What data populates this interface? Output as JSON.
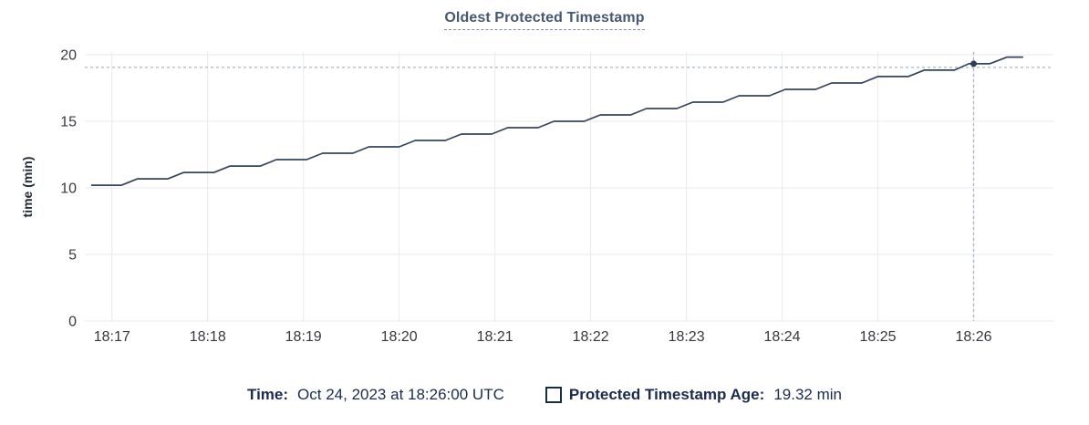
{
  "colors": {
    "title": "#475872",
    "title_underline": "#7d8cab",
    "line": "#34455e",
    "dot": "#2c3d57",
    "grid": "#e9eaec",
    "axis_text": "#36393f",
    "ylabel_text": "#242a35",
    "crosshair": "#a5b5c5",
    "legend_text": "#1b2b4d"
  },
  "chart_data": {
    "type": "line",
    "title": "Oldest Protected Timestamp",
    "xlabel": "",
    "ylabel": "time (min)",
    "ylim": [
      0,
      20
    ],
    "yticks": [
      0,
      5,
      10,
      15,
      20
    ],
    "x_domain_s": [
      3,
      610
    ],
    "xticks": [
      [
        20,
        "18:17"
      ],
      [
        80,
        "18:18"
      ],
      [
        140,
        "18:19"
      ],
      [
        200,
        "18:20"
      ],
      [
        260,
        "18:21"
      ],
      [
        320,
        "18:22"
      ],
      [
        380,
        "18:23"
      ],
      [
        440,
        "18:24"
      ],
      [
        500,
        "18:25"
      ],
      [
        560,
        "18:26"
      ]
    ],
    "grid": true,
    "legend_position": "bottom",
    "series": [
      {
        "name": "Protected Timestamp Age",
        "points": [
          [
            7,
            10.2
          ],
          [
            26,
            10.2
          ],
          [
            36,
            10.68
          ],
          [
            55,
            10.68
          ],
          [
            65,
            11.16
          ],
          [
            84,
            11.16
          ],
          [
            94,
            11.64
          ],
          [
            113,
            11.64
          ],
          [
            123,
            12.12
          ],
          [
            142,
            12.12
          ],
          [
            152,
            12.6
          ],
          [
            171,
            12.6
          ],
          [
            181,
            13.08
          ],
          [
            200,
            13.08
          ],
          [
            210,
            13.56
          ],
          [
            229,
            13.56
          ],
          [
            239,
            14.04
          ],
          [
            258,
            14.04
          ],
          [
            268,
            14.52
          ],
          [
            287,
            14.52
          ],
          [
            297,
            15.0
          ],
          [
            316,
            15.0
          ],
          [
            326,
            15.48
          ],
          [
            345,
            15.48
          ],
          [
            355,
            15.96
          ],
          [
            374,
            15.96
          ],
          [
            384,
            16.44
          ],
          [
            403,
            16.44
          ],
          [
            413,
            16.92
          ],
          [
            432,
            16.92
          ],
          [
            442,
            17.4
          ],
          [
            461,
            17.4
          ],
          [
            471,
            17.88
          ],
          [
            490,
            17.88
          ],
          [
            500,
            18.36
          ],
          [
            519,
            18.36
          ],
          [
            529,
            18.84
          ],
          [
            548,
            18.84
          ],
          [
            557,
            19.32
          ],
          [
            570,
            19.32
          ],
          [
            581,
            19.82
          ],
          [
            591,
            19.82
          ]
        ]
      }
    ],
    "hover": {
      "t": 560,
      "value": 19.32,
      "guide_value": 19.05
    }
  },
  "legend": {
    "time_label": "Time:",
    "time_value": "Oct 24, 2023 at 18:26:00 UTC",
    "series_label": "Protected Timestamp Age:",
    "series_value": "19.32 min"
  }
}
